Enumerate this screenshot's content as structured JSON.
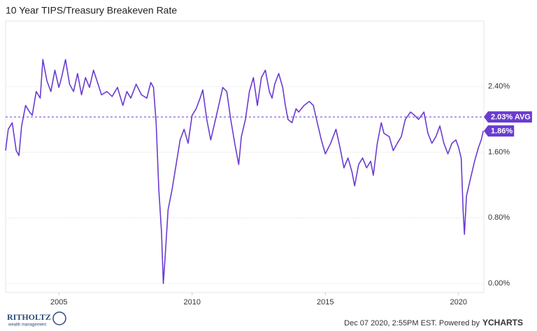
{
  "chart_data": {
    "type": "line",
    "title": "10 Year TIPS/Treasury Breakeven Rate",
    "x": [
      2003.0,
      2003.1,
      2003.25,
      2003.4,
      2003.5,
      2003.6,
      2003.75,
      2003.9,
      2004.0,
      2004.15,
      2004.3,
      2004.4,
      2004.55,
      2004.7,
      2004.85,
      2005.0,
      2005.1,
      2005.25,
      2005.4,
      2005.55,
      2005.7,
      2005.85,
      2006.0,
      2006.15,
      2006.3,
      2006.45,
      2006.6,
      2006.8,
      2007.0,
      2007.2,
      2007.4,
      2007.55,
      2007.7,
      2007.9,
      2008.1,
      2008.3,
      2008.45,
      2008.55,
      2008.65,
      2008.75,
      2008.85,
      2008.92,
      2009.0,
      2009.1,
      2009.25,
      2009.4,
      2009.55,
      2009.7,
      2009.85,
      2010.0,
      2010.15,
      2010.3,
      2010.4,
      2010.55,
      2010.7,
      2010.85,
      2011.0,
      2011.15,
      2011.3,
      2011.45,
      2011.6,
      2011.75,
      2011.85,
      2012.0,
      2012.15,
      2012.3,
      2012.45,
      2012.6,
      2012.75,
      2012.9,
      2013.0,
      2013.1,
      2013.25,
      2013.4,
      2013.5,
      2013.6,
      2013.75,
      2013.9,
      2014.0,
      2014.2,
      2014.4,
      2014.55,
      2014.7,
      2014.85,
      2015.0,
      2015.2,
      2015.4,
      2015.55,
      2015.7,
      2015.85,
      2016.0,
      2016.1,
      2016.25,
      2016.4,
      2016.55,
      2016.7,
      2016.8,
      2016.95,
      2017.1,
      2017.2,
      2017.4,
      2017.55,
      2017.7,
      2017.85,
      2018.0,
      2018.2,
      2018.35,
      2018.5,
      2018.7,
      2018.85,
      2019.0,
      2019.15,
      2019.3,
      2019.45,
      2019.6,
      2019.75,
      2019.9,
      2020.0,
      2020.1,
      2020.17,
      2020.22,
      2020.3,
      2020.45,
      2020.6,
      2020.75,
      2020.85,
      2020.93
    ],
    "series": [
      {
        "name": "10 Year TIPS/Treasury Breakeven Rate",
        "color": "#6a3bd1",
        "values": [
          1.62,
          1.88,
          1.96,
          1.62,
          1.56,
          1.92,
          2.17,
          2.09,
          2.05,
          2.34,
          2.26,
          2.73,
          2.47,
          2.34,
          2.6,
          2.39,
          2.51,
          2.73,
          2.43,
          2.34,
          2.56,
          2.3,
          2.51,
          2.39,
          2.6,
          2.45,
          2.3,
          2.34,
          2.28,
          2.39,
          2.17,
          2.34,
          2.26,
          2.43,
          2.3,
          2.26,
          2.45,
          2.39,
          1.96,
          1.15,
          0.64,
          0.0,
          0.38,
          0.9,
          1.15,
          1.45,
          1.75,
          1.88,
          1.71,
          2.05,
          2.13,
          2.26,
          2.36,
          2.0,
          1.75,
          1.96,
          2.17,
          2.39,
          2.34,
          2.0,
          1.71,
          1.45,
          1.79,
          2.0,
          2.34,
          2.51,
          2.17,
          2.51,
          2.6,
          2.34,
          2.26,
          2.43,
          2.56,
          2.39,
          2.17,
          2.0,
          1.96,
          2.13,
          2.09,
          2.17,
          2.22,
          2.17,
          1.96,
          1.75,
          1.58,
          1.71,
          1.88,
          1.66,
          1.41,
          1.53,
          1.36,
          1.19,
          1.45,
          1.53,
          1.41,
          1.49,
          1.32,
          1.71,
          1.96,
          1.83,
          1.79,
          1.62,
          1.71,
          1.79,
          2.0,
          2.09,
          2.05,
          2.0,
          2.09,
          1.83,
          1.71,
          1.79,
          1.92,
          1.71,
          1.58,
          1.71,
          1.75,
          1.66,
          1.53,
          0.9,
          0.6,
          1.07,
          1.28,
          1.49,
          1.66,
          1.75,
          1.86
        ]
      }
    ],
    "xlim": [
      2003.0,
      2020.95
    ],
    "xticks": [
      2005,
      2010,
      2015,
      2020
    ],
    "ylim": [
      -0.11,
      3.2
    ],
    "yticks": [
      {
        "value": 0,
        "label": "0.00%"
      },
      {
        "value": 0.8,
        "label": "0.80%"
      },
      {
        "value": 1.6,
        "label": "1.60%"
      },
      {
        "value": 2.4,
        "label": "2.40%"
      }
    ],
    "grid": true,
    "average": {
      "value": 2.03,
      "label": "2.03% AVG"
    },
    "last_value": {
      "value": 1.86,
      "label": "1.86%"
    },
    "footer": {
      "brand": "RITHOLTZ",
      "brand_sub": "wealth management",
      "timestamp": "Dec 07 2020, 2:55PM EST. Powered by",
      "source": "YCHARTS"
    }
  }
}
